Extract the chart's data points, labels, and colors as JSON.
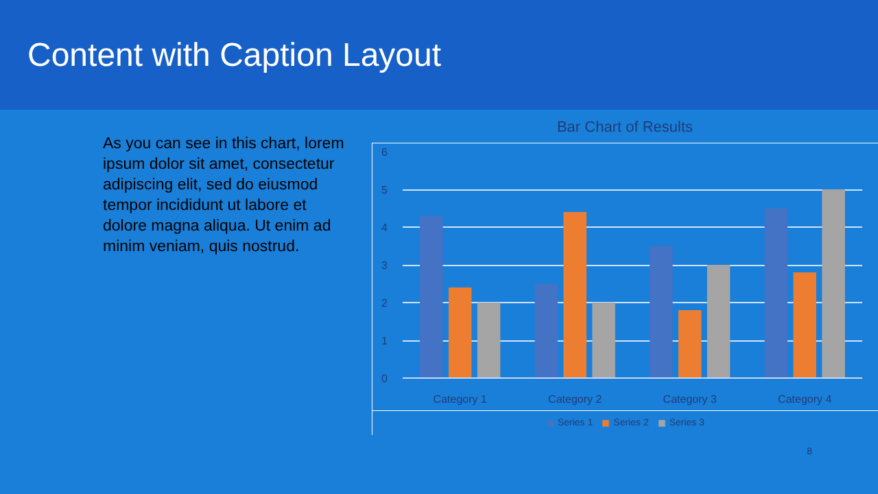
{
  "chart_data": {
    "type": "bar",
    "title": "Content with Caption Layout",
    "subtitle": "Bar Chart of Results",
    "annotations": [
      "As you can see in this chart, lorem ipsum dolor sit amet, consectetur adipiscing elit, sed do eiusmod tempor incididunt ut labore et dolore magna aliqua. Ut enim ad minim veniam, quis nostrud.",
      "8"
    ],
    "categories": [
      "Category 1",
      "Category 2",
      "Category 3",
      "Category 4"
    ],
    "series": [
      {
        "name": "Series 1",
        "color": "#4472c4",
        "values": [
          4.3,
          2.5,
          3.5,
          4.5
        ]
      },
      {
        "name": "Series 2",
        "color": "#ed7d31",
        "values": [
          2.4,
          4.4,
          1.8,
          2.8
        ]
      },
      {
        "name": "Series 3",
        "color": "#a5a5a5",
        "values": [
          2,
          2,
          3,
          5
        ]
      }
    ],
    "ylim": [
      0,
      6
    ],
    "yticks": [
      0,
      1,
      2,
      3,
      4,
      5,
      6
    ],
    "grid": "y",
    "legend": "bottom"
  }
}
